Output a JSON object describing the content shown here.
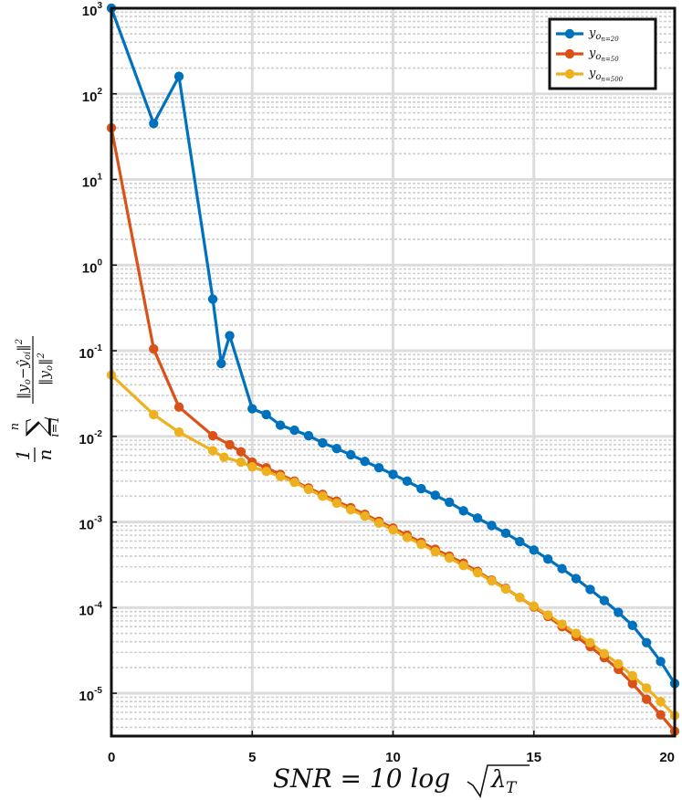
{
  "chart_data": {
    "type": "line",
    "title": "",
    "xlabel": "SNR = 10 log √λT",
    "ylabel": "(1/n) Σ_{i=1}^{n} ‖yo − ŷoi‖² / ‖yo‖²",
    "xlim": [
      0,
      20
    ],
    "ylim_log10": [
      -5.5,
      3
    ],
    "y_scale": "log",
    "grid": "on (major and minor)",
    "legend_position": "top-right",
    "x_ticks": [
      "0",
      "5",
      "10",
      "15",
      "20"
    ],
    "y_ticks": [
      {
        "base": "10",
        "exp": "3"
      },
      {
        "base": "10",
        "exp": "2"
      },
      {
        "base": "10",
        "exp": "1"
      },
      {
        "base": "10",
        "exp": "0"
      },
      {
        "base": "10",
        "exp": "-1"
      },
      {
        "base": "10",
        "exp": "-2"
      },
      {
        "base": "10",
        "exp": "-3"
      },
      {
        "base": "10",
        "exp": "-4"
      },
      {
        "base": "10",
        "exp": "-5"
      }
    ],
    "series": [
      {
        "name": "yo n=20",
        "legend_main": "y",
        "legend_sub": "o",
        "legend_subsub": "n=20",
        "color": "#0072bd",
        "x": [
          0,
          1.5,
          2.4,
          3.6,
          3.9,
          4.2,
          5.0,
          5.5,
          6.0,
          6.5,
          7.0,
          7.5,
          8.0,
          8.5,
          9.0,
          9.5,
          10.0,
          10.5,
          11.0,
          11.5,
          12.0,
          12.5,
          13.0,
          13.5,
          14.0,
          14.5,
          15.0,
          15.5,
          16.0,
          16.5,
          17.0,
          17.5,
          18.0,
          18.5,
          19.0,
          19.5,
          20.0
        ],
        "y": [
          1000,
          45,
          160,
          0.4,
          0.071,
          0.15,
          0.021,
          0.018,
          0.0135,
          0.0118,
          0.0102,
          0.0084,
          0.0072,
          0.0061,
          0.0051,
          0.0043,
          0.0036,
          0.003,
          0.00245,
          0.00205,
          0.0017,
          0.00135,
          0.00111,
          0.00091,
          0.00074,
          0.00059,
          0.00047,
          0.000369,
          0.000285,
          0.000218,
          0.000163,
          0.000121,
          8.8e-05,
          6.2e-05,
          3.9e-05,
          2.35e-05,
          1.3e-05
        ]
      },
      {
        "name": "yo n=50",
        "legend_main": "y",
        "legend_sub": "o",
        "legend_subsub": "n=50",
        "color": "#d95319",
        "x": [
          0,
          1.5,
          2.4,
          3.6,
          4.2,
          4.6,
          5.0,
          5.5,
          6.0,
          6.5,
          7.0,
          7.5,
          8.0,
          8.5,
          9.0,
          9.5,
          10.0,
          10.5,
          11.0,
          11.5,
          12.0,
          12.5,
          13.0,
          13.5,
          14.0,
          14.5,
          15.0,
          15.5,
          16.0,
          16.5,
          17.0,
          17.5,
          18.0,
          18.5,
          19.0,
          19.5,
          20.0
        ],
        "y": [
          40,
          0.105,
          0.022,
          0.0102,
          0.008,
          0.0066,
          0.005,
          0.0043,
          0.0036,
          0.003,
          0.0025,
          0.0021,
          0.00175,
          0.00147,
          0.00123,
          0.00102,
          0.00085,
          0.0007,
          0.00058,
          0.00048,
          0.0004,
          0.00033,
          0.000265,
          0.00021,
          0.000168,
          0.000131,
          0.000102,
          7.9e-05,
          6e-05,
          4.6e-05,
          3.5e-05,
          2.6e-05,
          1.9e-05,
          1.3e-05,
          8.5e-06,
          5.6e-06,
          3.6e-06
        ]
      },
      {
        "name": "yo n=500",
        "legend_main": "y",
        "legend_sub": "o",
        "legend_subsub": "n=500",
        "color": "#edb120",
        "x": [
          0,
          1.5,
          2.4,
          3.6,
          4.0,
          4.6,
          5.0,
          5.5,
          6.0,
          6.5,
          7.0,
          7.5,
          8.0,
          8.5,
          9.0,
          9.5,
          10.0,
          10.5,
          11.0,
          11.5,
          12.0,
          12.5,
          13.0,
          13.5,
          14.0,
          14.5,
          15.0,
          15.5,
          16.0,
          16.5,
          17.0,
          17.5,
          18.0,
          18.5,
          19.0,
          19.5,
          20.0
        ],
        "y": [
          0.052,
          0.018,
          0.0112,
          0.0068,
          0.0057,
          0.005,
          0.0044,
          0.0039,
          0.0034,
          0.0029,
          0.0024,
          0.002,
          0.00166,
          0.00139,
          0.00117,
          0.00097,
          0.00081,
          0.00066,
          0.00055,
          0.00045,
          0.00038,
          0.00031,
          0.000255,
          0.000205,
          0.000165,
          0.000131,
          0.000104,
          8.2e-05,
          6.4e-05,
          5e-05,
          3.9e-05,
          2.9e-05,
          2.2e-05,
          1.6e-05,
          1.15e-05,
          8e-06,
          5.5e-06
        ]
      }
    ]
  }
}
